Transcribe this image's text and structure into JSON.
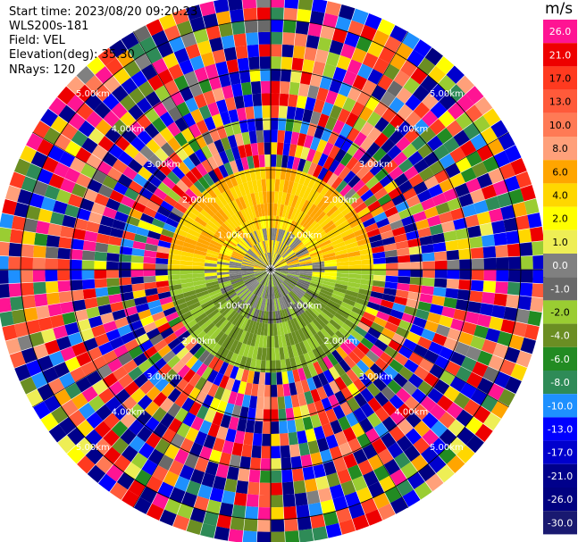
{
  "header": {
    "start_time": "Start time: 2023/08/20 09:20:23",
    "instrument": "WLS200s-181",
    "field": "Field: VEL",
    "elevation": "Elevation(deg): 35.30",
    "nrays": "NRays: 120"
  },
  "colorbar": {
    "unit": "m/s",
    "levels": [
      "26.0",
      "21.0",
      "17.0",
      "13.0",
      "10.0",
      "8.0",
      "6.0",
      "4.0",
      "2.0",
      "1.0",
      "0.0",
      "-1.0",
      "-2.0",
      "-4.0",
      "-6.0",
      "-8.0",
      "-10.0",
      "-13.0",
      "-17.0",
      "-21.0",
      "-26.0",
      "-30.0"
    ],
    "colors": [
      "#ff1493",
      "#ee0000",
      "#ff3a1f",
      "#ff5a3a",
      "#ff7a55",
      "#ffa07a",
      "#ffa500",
      "#ffd700",
      "#ffff00",
      "#eeee55",
      "#808080",
      "#696969",
      "#9acd32",
      "#6b8e23",
      "#228b22",
      "#2e8b57",
      "#1e90ff",
      "#0000ff",
      "#0000cd",
      "#00008b",
      "#000080",
      "#191970"
    ]
  },
  "chart_data": {
    "type": "heatmap",
    "projection": "polar PPI",
    "field": "VEL",
    "units": "m/s",
    "nrays": 120,
    "range_rings_km": [
      1.0,
      2.0,
      3.0,
      4.0,
      5.0
    ],
    "range_ring_labels": [
      "1.00km",
      "2.00km",
      "3.00km",
      "4.00km",
      "5.00km"
    ],
    "max_range_km": 5.5,
    "valid_data_range_km": 2.0,
    "velocity_pattern": {
      "north_sector": "2.0 to 6.0",
      "center": "-1.0 to 0.0",
      "south_sector": "-6.0 to -2.0",
      "beyond_2km": "noise (-30.0 to 26.0)"
    },
    "color_scale": {
      "bounds": [
        26.0,
        21.0,
        17.0,
        13.0,
        10.0,
        8.0,
        6.0,
        4.0,
        2.0,
        1.0,
        0.0,
        -1.0,
        -2.0,
        -4.0,
        -6.0,
        -8.0,
        -10.0,
        -13.0,
        -17.0,
        -21.0,
        -26.0,
        -30.0
      ]
    }
  }
}
